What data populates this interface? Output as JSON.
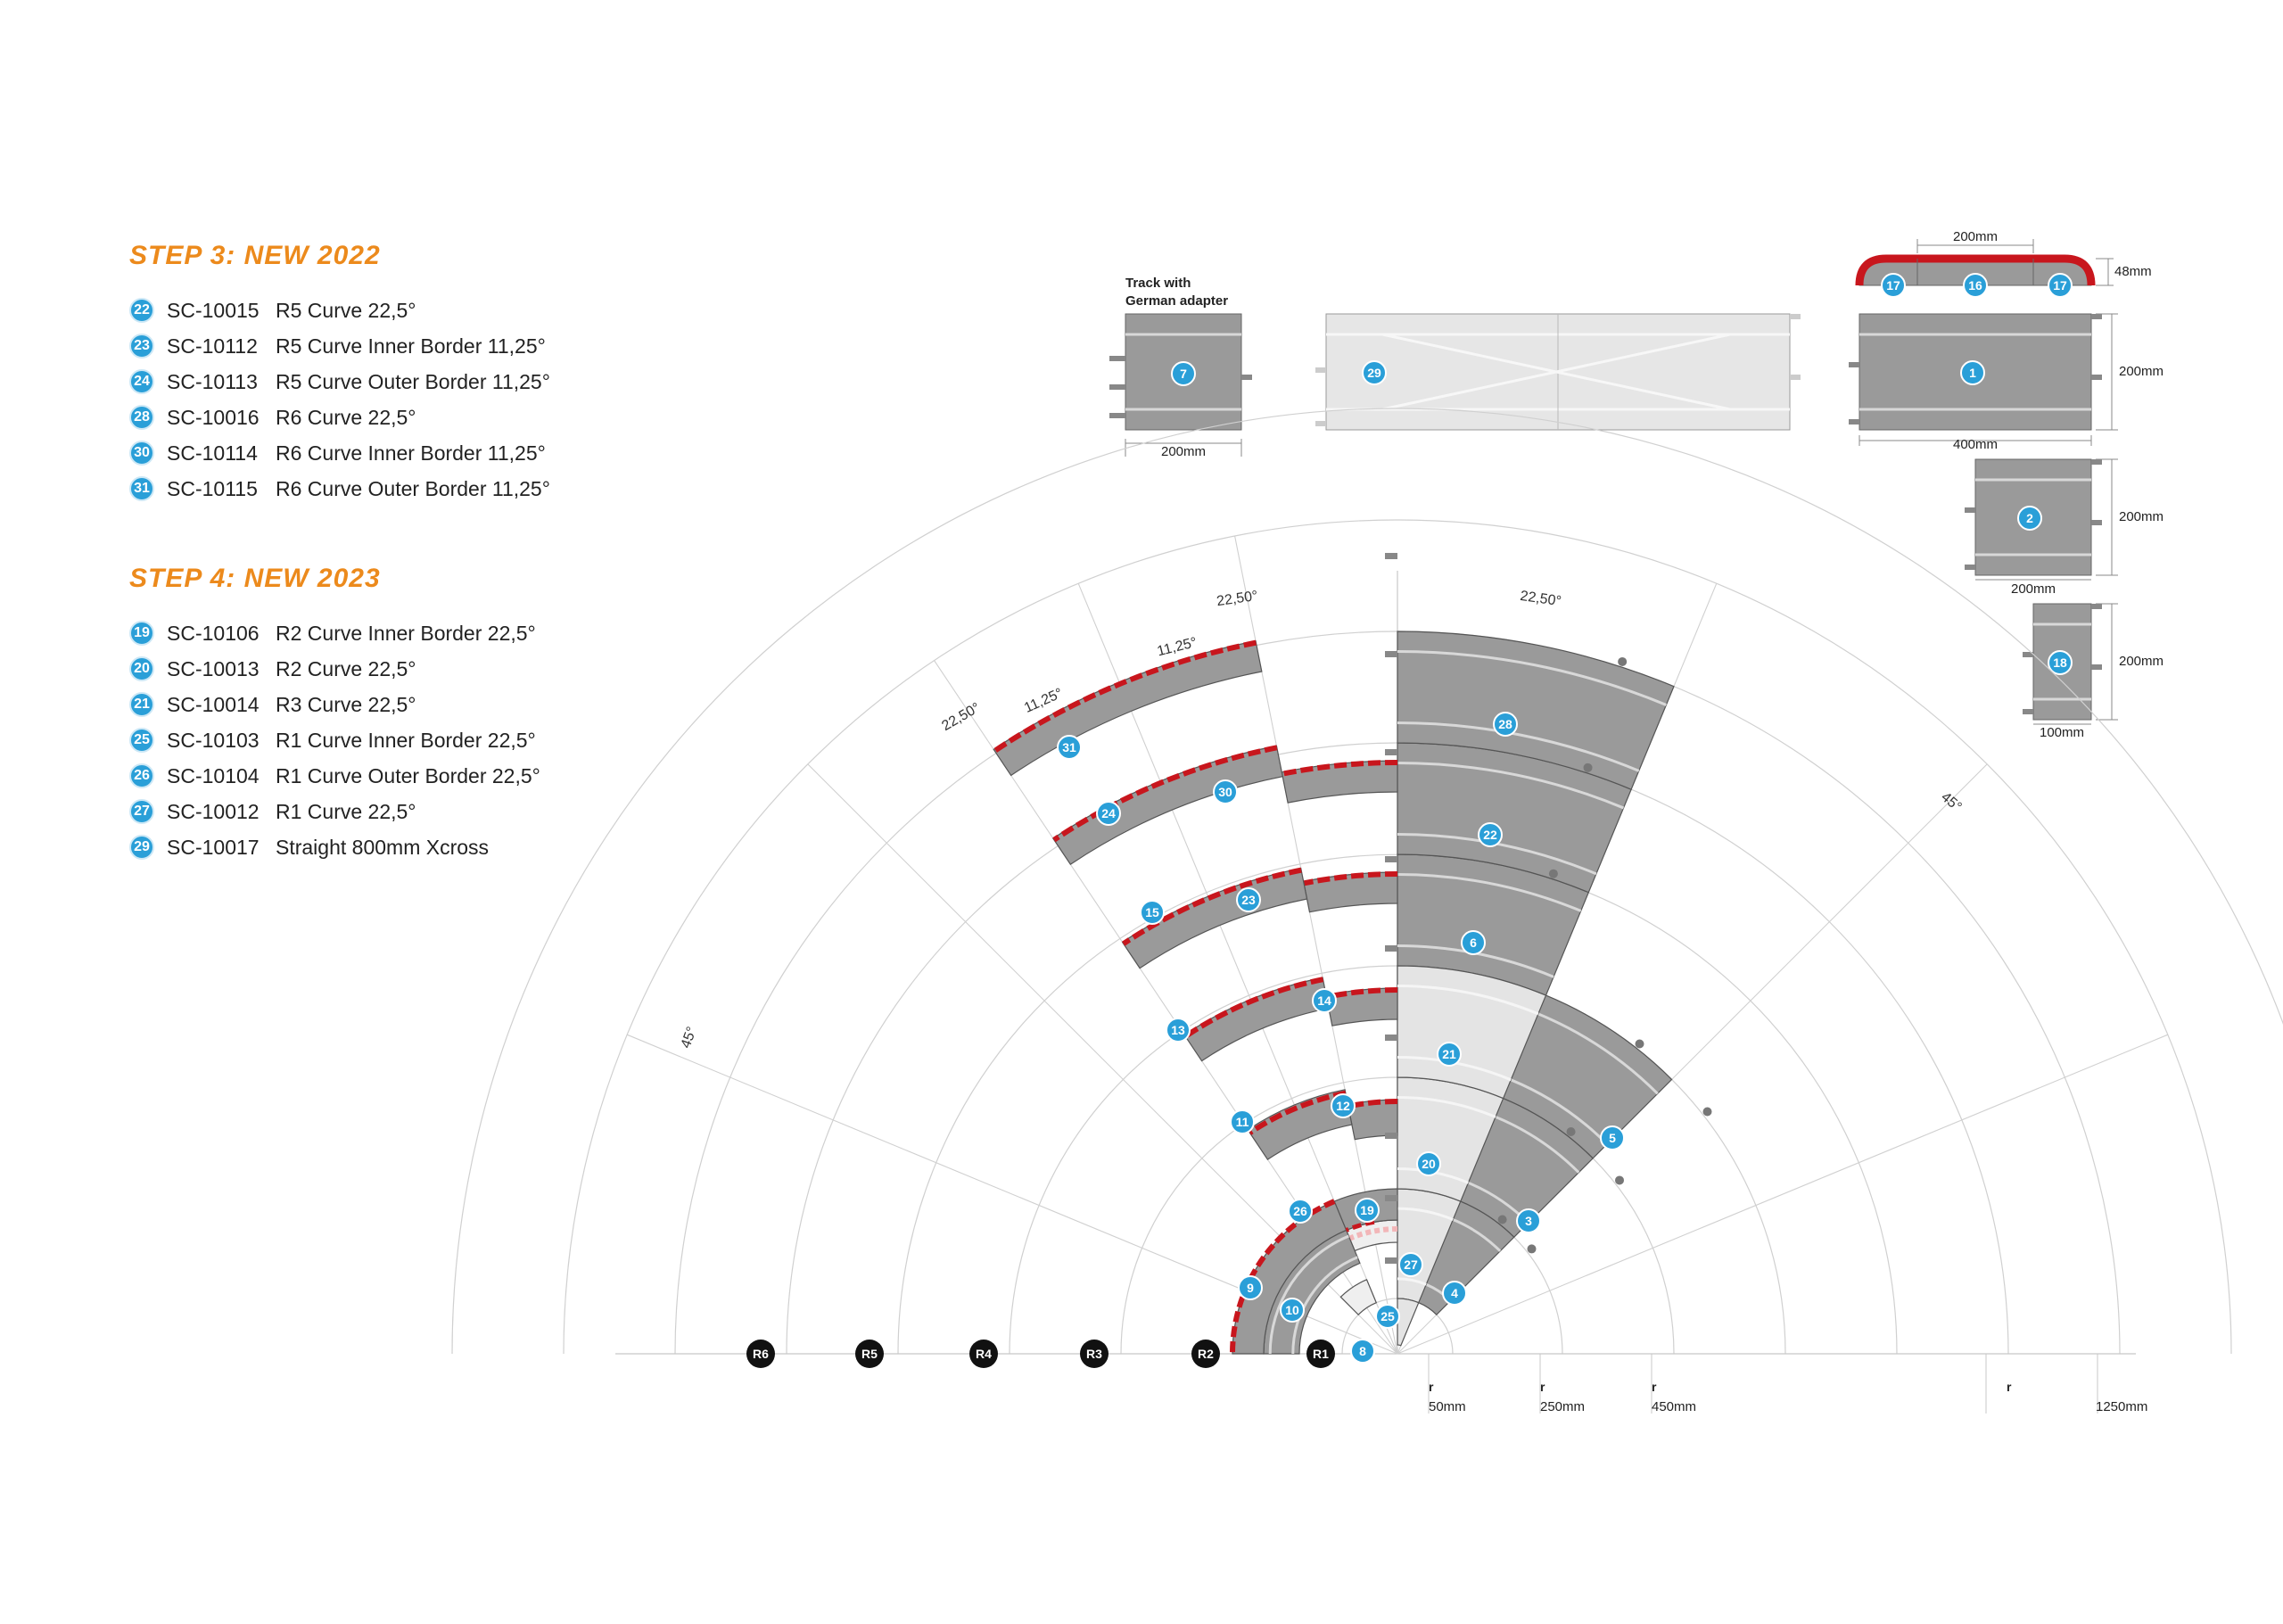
{
  "steps": [
    {
      "title": "STEP 3: NEW 2022",
      "items": [
        {
          "num": "22",
          "code": "SC-10015",
          "desc": "R5 Curve 22,5°"
        },
        {
          "num": "23",
          "code": "SC-10112",
          "desc": "R5 Curve Inner Border 11,25°"
        },
        {
          "num": "24",
          "code": "SC-10113",
          "desc": "R5 Curve Outer Border 11,25°"
        },
        {
          "num": "28",
          "code": "SC-10016",
          "desc": "R6 Curve 22,5°"
        },
        {
          "num": "30",
          "code": "SC-10114",
          "desc": "R6 Curve Inner Border 11,25°"
        },
        {
          "num": "31",
          "code": "SC-10115",
          "desc": "R6 Curve Outer Border 11,25°"
        }
      ]
    },
    {
      "title": "STEP 4: NEW 2023",
      "items": [
        {
          "num": "19",
          "code": "SC-10106",
          "desc": "R2 Curve Inner Border 22,5°"
        },
        {
          "num": "20",
          "code": "SC-10013",
          "desc": "R2 Curve 22,5°"
        },
        {
          "num": "21",
          "code": "SC-10014",
          "desc": "R3 Curve 22,5°"
        },
        {
          "num": "25",
          "code": "SC-10103",
          "desc": "R1 Curve Inner Border 22,5°"
        },
        {
          "num": "26",
          "code": "SC-10104",
          "desc": "R1 Curve Outer Border 22,5°"
        },
        {
          "num": "27",
          "code": "SC-10012",
          "desc": "R1 Curve 22,5°"
        },
        {
          "num": "29",
          "code": "SC-10017",
          "desc": "Straight 800mm Xcross"
        }
      ]
    }
  ],
  "straights": {
    "german_adapter_label_1": "Track with",
    "german_adapter_label_2": "German adapter",
    "piece_7": "7",
    "piece_29": "29",
    "piece_1": "1",
    "piece_2": "2",
    "piece_18": "18",
    "piece_16": "16",
    "piece_17": "17",
    "dim_200mm": "200mm",
    "dim_400mm": "400mm",
    "dim_100mm": "100mm",
    "dim_48mm": "48mm"
  },
  "curves": {
    "angle_2250": "22,50°",
    "angle_1125": "11,25°",
    "angle_45": "45°",
    "radius_labels": [
      "R6",
      "R5",
      "R4",
      "R3",
      "R2",
      "R1"
    ],
    "r_letter": "r",
    "r_50": "50mm",
    "r_250": "250mm",
    "r_450": "450mm",
    "r_1250": "1250mm",
    "piece_numbers": [
      "31",
      "24",
      "30",
      "15",
      "23",
      "13",
      "14",
      "11",
      "12",
      "26",
      "19",
      "9",
      "10",
      "25",
      "8",
      "27",
      "20",
      "21",
      "6",
      "22",
      "28",
      "5",
      "3",
      "4"
    ]
  },
  "colors": {
    "accent_orange": "#ec8a1c",
    "badge_blue": "#2a9fd8",
    "track_dark": "#9a9a9a",
    "track_light": "#e4e4e4",
    "border_red": "#c8161d"
  }
}
